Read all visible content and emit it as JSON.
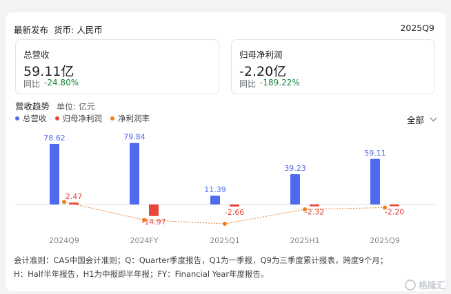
{
  "header": {
    "latest_label": "最新发布",
    "currency_label": "货币: 人民币",
    "period": "2025Q9"
  },
  "cards": [
    {
      "title": "总营收",
      "value": "59.11亿",
      "yoy_label": "同比",
      "yoy_value": "-24.80%"
    },
    {
      "title": "归母净利润",
      "value": "-2.20亿",
      "yoy_label": "同比",
      "yoy_value": "-189.22%"
    }
  ],
  "trend": {
    "title": "营收趋势",
    "unit": "单位: 亿元",
    "filter_label": "全部"
  },
  "colors": {
    "revenue": "#4e6bef",
    "net_profit": "#e8453c",
    "margin": "#f07c1d",
    "positive": "#188038"
  },
  "chart_data": {
    "type": "bar",
    "categories": [
      "2024Q9",
      "2024FY",
      "2025Q1",
      "2025H1",
      "2025Q9"
    ],
    "series": [
      {
        "name": "总营收",
        "type": "bar",
        "values": [
          78.62,
          79.84,
          11.39,
          39.23,
          59.11
        ]
      },
      {
        "name": "归母净利润",
        "type": "bar",
        "values": [
          2.47,
          -14.97,
          -2.66,
          -2.32,
          -2.2
        ]
      },
      {
        "name": "净利润率",
        "type": "line",
        "values": [
          3.14,
          -18.75,
          -23.35,
          -5.91,
          -3.72
        ]
      }
    ],
    "legend": "top-left",
    "grid": false
  },
  "footnote": {
    "line1": "会计准则：CAS中国会计准则；Q：Quarter季度报告，Q1为一季报，Q9为三季度累计报表，跨度9个月；",
    "line2": "H：Half半年报告，H1为中报即半年报；FY：Financial Year年度报告。"
  },
  "watermark": "格隆汇"
}
